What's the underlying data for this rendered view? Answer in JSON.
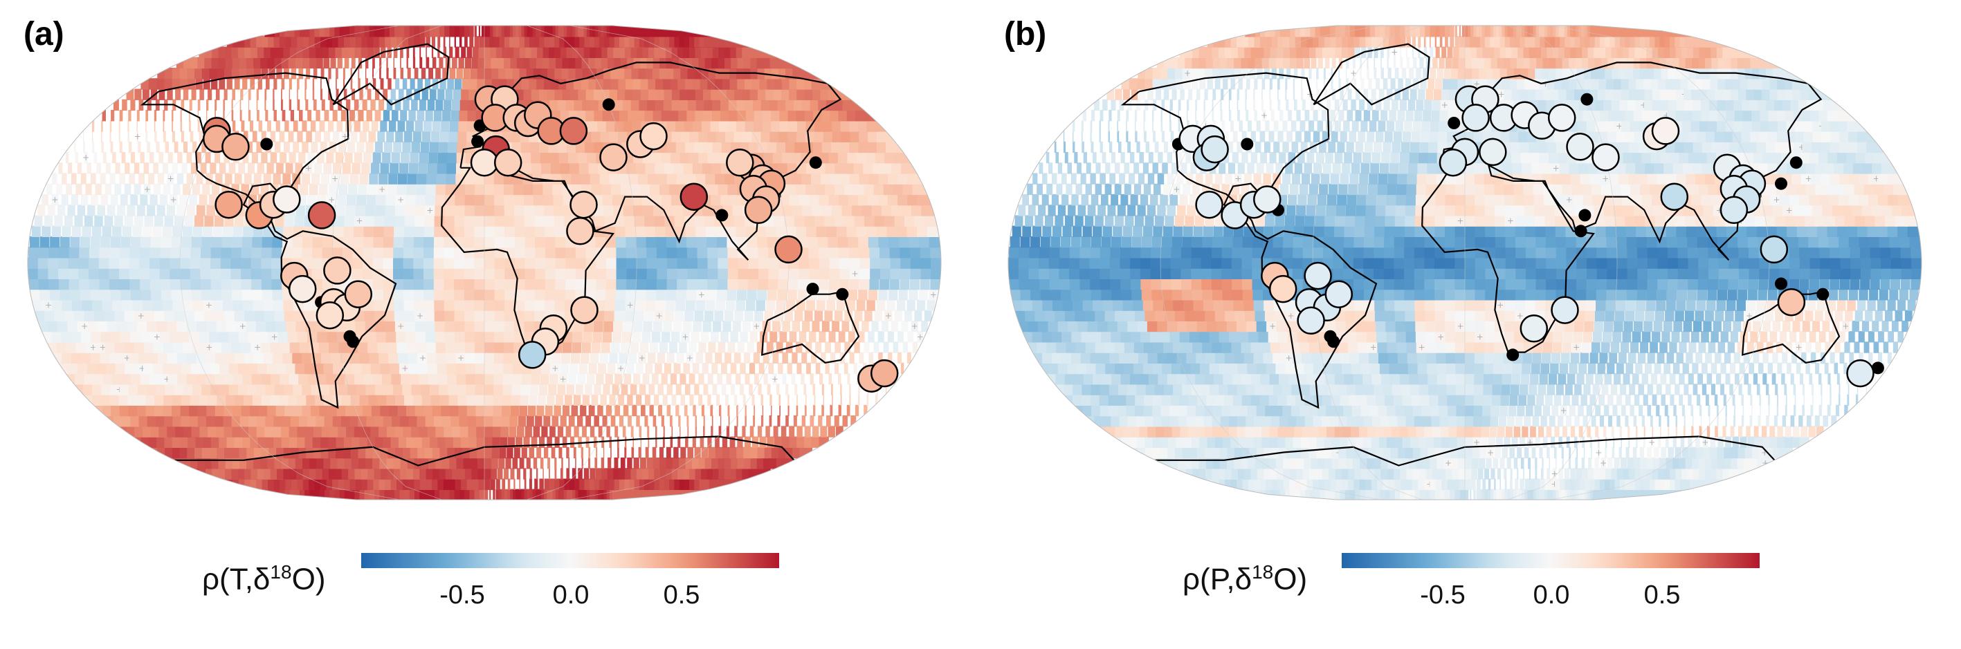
{
  "colors": {
    "neg_strong": "#2166ac",
    "neg_mid": "#6aaad4",
    "neg_light": "#d1e5f0",
    "zero": "#f7f7f7",
    "pos_light": "#fddbc7",
    "pos_mid": "#f09a7a",
    "pos_strong": "#b2182b",
    "coast": "#000000",
    "hatch": "#b0b0b0"
  },
  "panels": [
    {
      "label": "(a)",
      "colorbar": {
        "symbol": "ρ",
        "var": "T",
        "delta": "δ",
        "sup": "18",
        "species": "O",
        "ticks": [
          "-0.5",
          "0.0",
          "0.5"
        ]
      },
      "field_type": "temperature",
      "stations": [
        {
          "lon": -120,
          "lat": 50,
          "v": 0.65
        },
        {
          "lon": -118,
          "lat": 47,
          "v": 0.45
        },
        {
          "lon": -108,
          "lat": 44,
          "v": 0.45
        },
        {
          "lon": -103,
          "lat": 22,
          "v": 0.5
        },
        {
          "lon": -90,
          "lat": 18,
          "v": 0.55
        },
        {
          "lon": -85,
          "lat": 22,
          "v": 0.3
        },
        {
          "lon": -80,
          "lat": 24,
          "v": 0.05
        },
        {
          "lon": -65,
          "lat": 18,
          "v": 0.75
        },
        {
          "lon": -75,
          "lat": -5,
          "v": 0.35
        },
        {
          "lon": -72,
          "lat": -10,
          "v": 0.1
        },
        {
          "lon": -60,
          "lat": -15,
          "v": 0.25
        },
        {
          "lon": -55,
          "lat": -17,
          "v": 0.2
        },
        {
          "lon": -50,
          "lat": -12,
          "v": 0.35
        },
        {
          "lon": -58,
          "lat": -3,
          "v": 0.3
        },
        {
          "lon": -62,
          "lat": -20,
          "v": 0.2
        },
        {
          "lon": 2,
          "lat": 62,
          "v": 0.45
        },
        {
          "lon": 10,
          "lat": 62,
          "v": 0.3
        },
        {
          "lon": 5,
          "lat": 55,
          "v": 0.5
        },
        {
          "lon": 15,
          "lat": 55,
          "v": 0.35
        },
        {
          "lon": 20,
          "lat": 53,
          "v": 0.4
        },
        {
          "lon": 25,
          "lat": 56,
          "v": 0.45
        },
        {
          "lon": 30,
          "lat": 50,
          "v": 0.6
        },
        {
          "lon": 40,
          "lat": 50,
          "v": 0.7
        },
        {
          "lon": 5,
          "lat": 43,
          "v": 0.85
        },
        {
          "lon": 0,
          "lat": 38,
          "v": 0.15
        },
        {
          "lon": 10,
          "lat": 38,
          "v": 0.3
        },
        {
          "lon": 55,
          "lat": 40,
          "v": 0.35
        },
        {
          "lon": 68,
          "lat": 45,
          "v": 0.3
        },
        {
          "lon": 75,
          "lat": 48,
          "v": 0.25
        },
        {
          "lon": 40,
          "lat": 22,
          "v": 0.3
        },
        {
          "lon": 38,
          "lat": 12,
          "v": 0.3
        },
        {
          "lon": 85,
          "lat": 25,
          "v": 0.85
        },
        {
          "lon": 112,
          "lat": 36,
          "v": 0.45
        },
        {
          "lon": 115,
          "lat": 32,
          "v": 0.35
        },
        {
          "lon": 118,
          "lat": 30,
          "v": 0.5
        },
        {
          "lon": 110,
          "lat": 28,
          "v": 0.4
        },
        {
          "lon": 114,
          "lat": 24,
          "v": 0.4
        },
        {
          "lon": 110,
          "lat": 20,
          "v": 0.45
        },
        {
          "lon": 108,
          "lat": 38,
          "v": 0.3
        },
        {
          "lon": 120,
          "lat": 5,
          "v": 0.6
        },
        {
          "lon": 40,
          "lat": -18,
          "v": 0.3
        },
        {
          "lon": 28,
          "lat": -25,
          "v": 0.25
        },
        {
          "lon": 25,
          "lat": -30,
          "v": 0.2
        },
        {
          "lon": 20,
          "lat": -35,
          "v": -0.35
        },
        {
          "lon": 168,
          "lat": -44,
          "v": 0.4
        },
        {
          "lon": 172,
          "lat": -42,
          "v": 0.45
        }
      ],
      "black_dots": [
        {
          "lon": -95,
          "lat": 45
        },
        {
          "lon": -2,
          "lat": 52
        },
        {
          "lon": -3,
          "lat": 46
        },
        {
          "lon": 60,
          "lat": 60
        },
        {
          "lon": 140,
          "lat": 38
        },
        {
          "lon": 95,
          "lat": 18
        },
        {
          "lon": 130,
          "lat": -10
        },
        {
          "lon": 142,
          "lat": -12
        },
        {
          "lon": -65,
          "lat": -15
        },
        {
          "lon": -55,
          "lat": -28
        },
        {
          "lon": -54,
          "lat": -30
        }
      ]
    },
    {
      "label": "(b)",
      "colorbar": {
        "symbol": "ρ",
        "var": "P",
        "delta": "δ",
        "sup": "18",
        "species": "O",
        "ticks": [
          "-0.5",
          "0.0",
          "0.5"
        ]
      },
      "field_type": "precipitation",
      "stations": [
        {
          "lon": -120,
          "lat": 47,
          "v": -0.05
        },
        {
          "lon": -112,
          "lat": 47,
          "v": -0.15
        },
        {
          "lon": -110,
          "lat": 40,
          "v": -0.3
        },
        {
          "lon": -108,
          "lat": 43,
          "v": -0.2
        },
        {
          "lon": -103,
          "lat": 22,
          "v": -0.15
        },
        {
          "lon": -92,
          "lat": 18,
          "v": -0.15
        },
        {
          "lon": -85,
          "lat": 22,
          "v": -0.2
        },
        {
          "lon": -80,
          "lat": 24,
          "v": -0.1
        },
        {
          "lon": -75,
          "lat": -5,
          "v": 0.35
        },
        {
          "lon": -72,
          "lat": -10,
          "v": 0.25
        },
        {
          "lon": -62,
          "lat": -15,
          "v": -0.15
        },
        {
          "lon": -55,
          "lat": -17,
          "v": -0.2
        },
        {
          "lon": -50,
          "lat": -12,
          "v": -0.15
        },
        {
          "lon": -58,
          "lat": -5,
          "v": -0.15
        },
        {
          "lon": -62,
          "lat": -22,
          "v": -0.15
        },
        {
          "lon": 2,
          "lat": 62,
          "v": -0.2
        },
        {
          "lon": 10,
          "lat": 62,
          "v": -0.1
        },
        {
          "lon": 5,
          "lat": 55,
          "v": -0.15
        },
        {
          "lon": 18,
          "lat": 55,
          "v": -0.1
        },
        {
          "lon": 28,
          "lat": 56,
          "v": -0.05
        },
        {
          "lon": 35,
          "lat": 52,
          "v": -0.1
        },
        {
          "lon": 45,
          "lat": 55,
          "v": -0.05
        },
        {
          "lon": 0,
          "lat": 42,
          "v": -0.15
        },
        {
          "lon": 12,
          "lat": 42,
          "v": -0.1
        },
        {
          "lon": -5,
          "lat": 38,
          "v": -0.2
        },
        {
          "lon": 50,
          "lat": 44,
          "v": -0.1
        },
        {
          "lon": 60,
          "lat": 40,
          "v": -0.05
        },
        {
          "lon": 85,
          "lat": 48,
          "v": 0.1
        },
        {
          "lon": 90,
          "lat": 50,
          "v": 0.05
        },
        {
          "lon": 85,
          "lat": 25,
          "v": -0.3
        },
        {
          "lon": 110,
          "lat": 36,
          "v": -0.1
        },
        {
          "lon": 115,
          "lat": 32,
          "v": -0.15
        },
        {
          "lon": 118,
          "lat": 30,
          "v": -0.2
        },
        {
          "lon": 110,
          "lat": 28,
          "v": -0.15
        },
        {
          "lon": 114,
          "lat": 24,
          "v": -0.25
        },
        {
          "lon": 108,
          "lat": 20,
          "v": -0.2
        },
        {
          "lon": 122,
          "lat": 5,
          "v": -0.3
        },
        {
          "lon": 130,
          "lat": -15,
          "v": 0.35
        },
        {
          "lon": 40,
          "lat": -18,
          "v": -0.15
        },
        {
          "lon": 28,
          "lat": -25,
          "v": -0.1
        },
        {
          "lon": 170,
          "lat": -42,
          "v": -0.15
        }
      ],
      "black_dots": [
        {
          "lon": -125,
          "lat": 45
        },
        {
          "lon": -95,
          "lat": 45
        },
        {
          "lon": -75,
          "lat": 20
        },
        {
          "lon": -5,
          "lat": 53
        },
        {
          "lon": 60,
          "lat": 62
        },
        {
          "lon": 140,
          "lat": 38
        },
        {
          "lon": 130,
          "lat": 30
        },
        {
          "lon": 48,
          "lat": 18
        },
        {
          "lon": 46,
          "lat": 12
        },
        {
          "lon": 125,
          "lat": -8
        },
        {
          "lon": 142,
          "lat": -12
        },
        {
          "lon": -65,
          "lat": -15
        },
        {
          "lon": -55,
          "lat": -28
        },
        {
          "lon": -54,
          "lat": -30
        },
        {
          "lon": 20,
          "lat": -35
        },
        {
          "lon": 176,
          "lat": -40
        }
      ]
    }
  ]
}
